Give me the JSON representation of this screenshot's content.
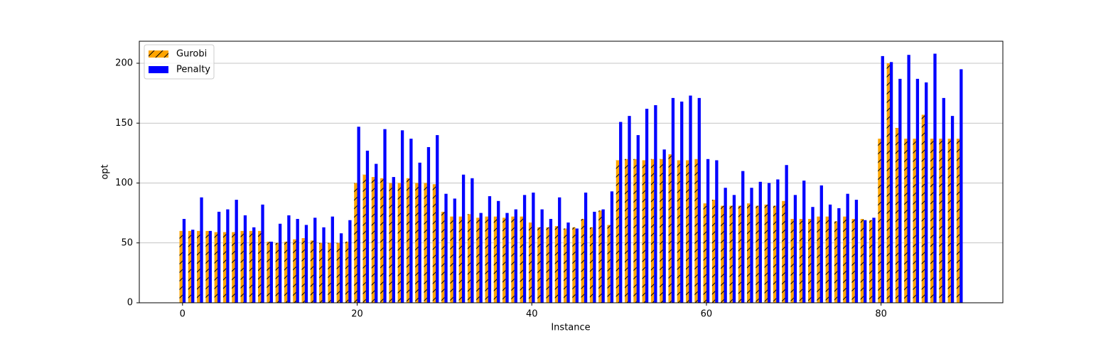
{
  "chart_data": {
    "type": "bar",
    "x": [
      0,
      1,
      2,
      3,
      4,
      5,
      6,
      7,
      8,
      9,
      10,
      11,
      12,
      13,
      14,
      15,
      16,
      17,
      18,
      19,
      20,
      21,
      22,
      23,
      24,
      25,
      26,
      27,
      28,
      29,
      30,
      31,
      32,
      33,
      34,
      35,
      36,
      37,
      38,
      39,
      40,
      41,
      42,
      43,
      44,
      45,
      46,
      47,
      48,
      49,
      50,
      51,
      52,
      53,
      54,
      55,
      56,
      57,
      58,
      59,
      60,
      61,
      62,
      63,
      64,
      65,
      66,
      67,
      68,
      69,
      70,
      71,
      72,
      73,
      74,
      75,
      76,
      77,
      78,
      79,
      80,
      81,
      82,
      83,
      84,
      85,
      86,
      87,
      88,
      89
    ],
    "series": [
      {
        "name": "Gurobi",
        "color": "#ffa500",
        "hatch": "/",
        "values": [
          60,
          60,
          60,
          60,
          59,
          59,
          59,
          60,
          60,
          60,
          51,
          50,
          51,
          53,
          54,
          52,
          50,
          50,
          50,
          51,
          100,
          107,
          105,
          104,
          100,
          100,
          104,
          100,
          100,
          99,
          76,
          72,
          72,
          74,
          71,
          72,
          72,
          71,
          72,
          72,
          67,
          63,
          63,
          64,
          62,
          63,
          70,
          63,
          77,
          65,
          119,
          120,
          120,
          119,
          120,
          120,
          124,
          119,
          119,
          120,
          83,
          86,
          81,
          81,
          81,
          83,
          81,
          82,
          81,
          85,
          70,
          70,
          70,
          72,
          72,
          68,
          72,
          70,
          70,
          69,
          137,
          200,
          146,
          137,
          137,
          157,
          137,
          137,
          137,
          137
        ]
      },
      {
        "name": "Penalty",
        "color": "#0000ff",
        "values": [
          70,
          61,
          88,
          60,
          76,
          78,
          86,
          73,
          63,
          82,
          51,
          66,
          73,
          70,
          65,
          71,
          63,
          72,
          58,
          69,
          147,
          127,
          116,
          145,
          105,
          144,
          137,
          117,
          130,
          140,
          91,
          87,
          107,
          104,
          75,
          89,
          85,
          75,
          78,
          90,
          92,
          78,
          70,
          88,
          67,
          62,
          92,
          76,
          78,
          93,
          151,
          156,
          140,
          162,
          165,
          128,
          171,
          168,
          173,
          171,
          120,
          119,
          96,
          90,
          110,
          96,
          101,
          100,
          103,
          115,
          90,
          102,
          80,
          98,
          82,
          79,
          91,
          86,
          69,
          71,
          206,
          201,
          187,
          207,
          187,
          184,
          208,
          171,
          156,
          195
        ]
      }
    ],
    "xlabel": "Instance",
    "ylabel": "opt",
    "xlim": [
      -4.95,
      93.95
    ],
    "xticks": [
      0,
      20,
      40,
      60,
      80
    ],
    "ylim": [
      0,
      218.4
    ],
    "yticks": [
      0,
      50,
      100,
      150,
      200
    ],
    "grid": "y",
    "legend": "upper left"
  }
}
